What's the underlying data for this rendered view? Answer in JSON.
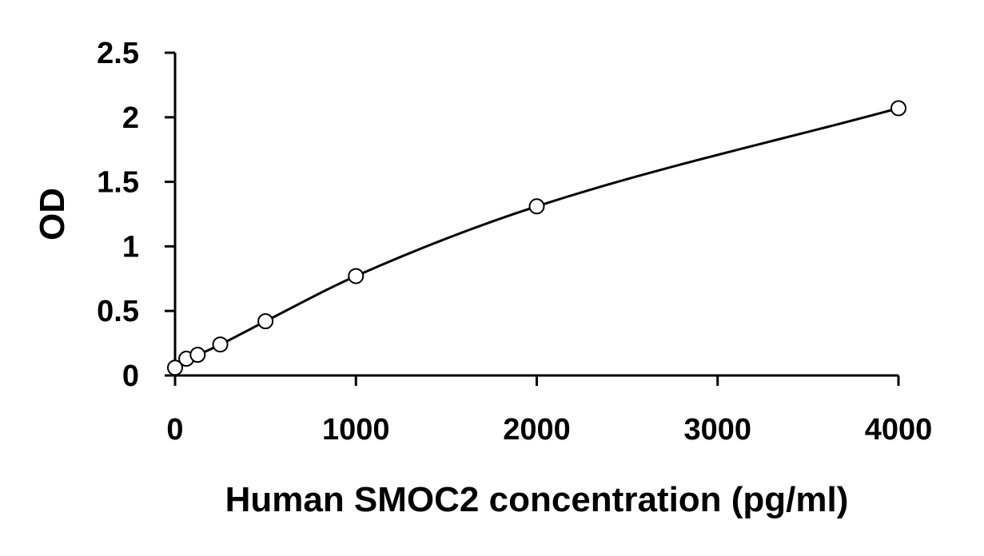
{
  "chart_data": {
    "type": "scatter",
    "xlabel": "Human SMOC2 concentration (pg/ml)",
    "ylabel": "OD",
    "xlim": [
      0,
      4000
    ],
    "ylim": [
      0,
      2.5
    ],
    "x_ticks": [
      "0",
      "1000",
      "2000",
      "3000",
      "4000"
    ],
    "y_ticks": [
      "0",
      "0.5",
      "1",
      "1.5",
      "2",
      "2.5"
    ],
    "grid": false,
    "series": [
      {
        "points": [
          {
            "x": 0,
            "y": 0.06
          },
          {
            "x": 62.5,
            "y": 0.13
          },
          {
            "x": 125,
            "y": 0.16
          },
          {
            "x": 250,
            "y": 0.24
          },
          {
            "x": 500,
            "y": 0.42
          },
          {
            "x": 1000,
            "y": 0.77
          },
          {
            "x": 2000,
            "y": 1.31
          },
          {
            "x": 4000,
            "y": 2.07
          }
        ],
        "marker": "open-circle",
        "trendline": "smooth curve"
      }
    ]
  }
}
